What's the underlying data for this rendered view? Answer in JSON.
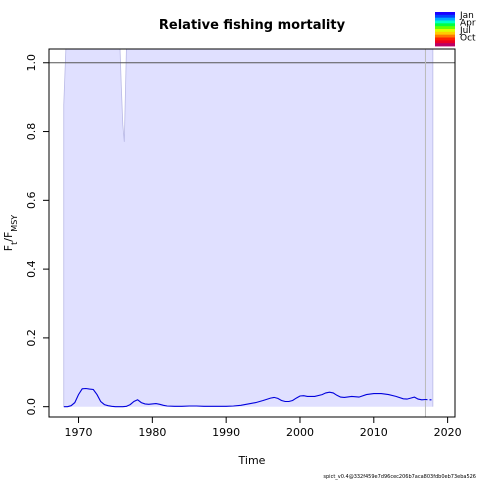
{
  "chart_data": {
    "type": "line",
    "title": "Relative fishing mortality",
    "xlabel": "Time",
    "ylabel": {
      "main": "F",
      "sub_t": "t",
      "sep": "/F",
      "sub_msy": "MSY"
    },
    "xlim": [
      1966,
      2021
    ],
    "ylim": [
      -0.03,
      1.04
    ],
    "x_ticks": [
      1970,
      1980,
      1990,
      2000,
      2010,
      2020
    ],
    "y_ticks": [
      0.0,
      0.2,
      0.4,
      0.6,
      0.8,
      1.0
    ],
    "y_tick_labels": [
      "0.0",
      "0.2",
      "0.4",
      "0.6",
      "0.8",
      "1.0"
    ],
    "reference_line": {
      "y": 1.0,
      "color": "#555555"
    },
    "vertical_line": {
      "x": 2017.0,
      "color": "#bbbbbb"
    },
    "confidence_band": {
      "color": "#e0e0ff",
      "edge_color": "#b9b9e6",
      "x": [
        1968.0,
        1968.3,
        1975.6,
        1975.8,
        1976.0,
        1976.2,
        1976.5,
        2018.0
      ],
      "upper": [
        0.88,
        1.05,
        1.05,
        0.93,
        0.82,
        0.77,
        1.05,
        1.05
      ],
      "lower": [
        0.0,
        0.0,
        0.0,
        0.0,
        0.0,
        0.0,
        0.0,
        0.0
      ]
    },
    "series": [
      {
        "color": "#0000dd",
        "x": [
          1968.0,
          1968.5,
          1969.0,
          1969.5,
          1970.0,
          1970.5,
          1971.0,
          1971.5,
          1972.0,
          1972.5,
          1973.0,
          1973.5,
          1974.0,
          1974.5,
          1975.0,
          1975.5,
          1976.0,
          1976.5,
          1977.0,
          1977.5,
          1978.0,
          1978.5,
          1979.0,
          1979.5,
          1980.0,
          1980.5,
          1981.0,
          1981.5,
          1982.0,
          1983.0,
          1984.0,
          1985.0,
          1986.0,
          1987.0,
          1988.0,
          1989.0,
          1990.0,
          1991.0,
          1992.0,
          1993.0,
          1994.0,
          1995.0,
          1996.0,
          1996.5,
          1997.0,
          1997.5,
          1998.0,
          1998.5,
          1999.0,
          1999.5,
          2000.0,
          2000.5,
          2001.0,
          2002.0,
          2003.0,
          2003.5,
          2004.0,
          2004.5,
          2005.0,
          2005.5,
          2006.0,
          2007.0,
          2008.0,
          2009.0,
          2010.0,
          2011.0,
          2012.0,
          2013.0,
          2014.0,
          2014.5,
          2015.0,
          2015.5,
          2016.0,
          2016.5,
          2017.0
        ],
        "y": [
          0.0,
          0.0,
          0.003,
          0.012,
          0.035,
          0.052,
          0.053,
          0.051,
          0.05,
          0.035,
          0.015,
          0.006,
          0.003,
          0.001,
          0.0,
          0.0,
          0.0,
          0.001,
          0.006,
          0.015,
          0.02,
          0.012,
          0.008,
          0.007,
          0.008,
          0.009,
          0.007,
          0.004,
          0.002,
          0.001,
          0.001,
          0.002,
          0.002,
          0.001,
          0.001,
          0.001,
          0.001,
          0.002,
          0.004,
          0.008,
          0.012,
          0.018,
          0.025,
          0.027,
          0.024,
          0.018,
          0.015,
          0.015,
          0.018,
          0.025,
          0.031,
          0.032,
          0.03,
          0.03,
          0.035,
          0.04,
          0.042,
          0.04,
          0.033,
          0.028,
          0.027,
          0.03,
          0.028,
          0.035,
          0.038,
          0.038,
          0.035,
          0.03,
          0.023,
          0.022,
          0.025,
          0.028,
          0.022,
          0.02,
          0.021
        ]
      },
      {
        "color": "#0000dd",
        "dashed": true,
        "x": [
          2017.0,
          2017.5,
          2018.0
        ],
        "y": [
          0.021,
          0.02,
          0.02
        ]
      }
    ],
    "legend": {
      "placement": "top-right",
      "entries": [
        "Jan",
        "Apr",
        "Jul",
        "Oct"
      ],
      "gradient_colors": [
        "#1a00ff",
        "#0045ff",
        "#00aaff",
        "#00ffcc",
        "#00ff44",
        "#66ff00",
        "#ddff00",
        "#ffcc00",
        "#ff7700",
        "#ff2200",
        "#ee0022",
        "#bb0066"
      ]
    },
    "footer": "spict_v0.4@332f459e7d96cec206b7aca803fdb0eb73eba526"
  }
}
